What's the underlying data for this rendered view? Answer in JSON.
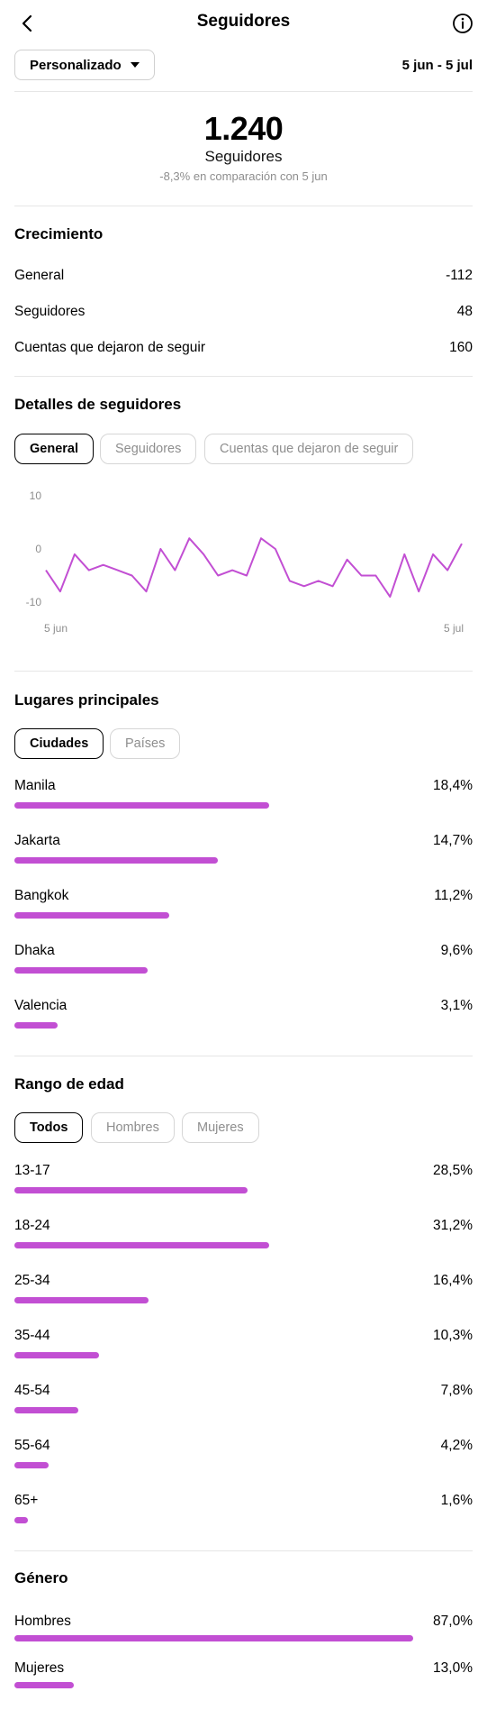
{
  "header": {
    "title": "Seguidores",
    "back_icon": "arrow-left-icon",
    "info_icon": "info-icon"
  },
  "filter": {
    "period_label": "Personalizado",
    "date_range": "5 jun - 5 jul"
  },
  "summary": {
    "total": "1.240",
    "label": "Seguidores",
    "comparison": "-8,3% en comparación con 5 jun"
  },
  "growth": {
    "title": "Crecimiento",
    "rows": [
      {
        "label": "General",
        "value": "-112"
      },
      {
        "label": "Seguidores",
        "value": "48"
      },
      {
        "label": "Cuentas que dejaron de seguir",
        "value": "160"
      }
    ]
  },
  "details": {
    "title": "Detalles de seguidores",
    "tabs": [
      {
        "label": "General",
        "active": true
      },
      {
        "label": "Seguidores",
        "active": false
      },
      {
        "label": "Cuentas que dejaron de seguir",
        "active": false
      }
    ]
  },
  "chart_data": {
    "type": "line",
    "x_tick_labels": [
      "5 jun",
      "5 jul"
    ],
    "y_ticks": [
      10,
      0,
      -10
    ],
    "ylim": [
      -10,
      10
    ],
    "color": "#c24fd3",
    "values": [
      -4,
      -8,
      -1,
      -4,
      -3,
      -4,
      -5,
      -8,
      0,
      -4,
      2,
      -1,
      -5,
      -4,
      -5,
      2,
      0,
      -6,
      -7,
      -6,
      -7,
      -2,
      -5,
      -5,
      -9,
      -1,
      -8,
      -1,
      -4,
      1
    ]
  },
  "places": {
    "title": "Lugares principales",
    "tabs": [
      {
        "label": "Ciudades",
        "active": true
      },
      {
        "label": "Países",
        "active": false
      }
    ],
    "rows": [
      {
        "label": "Manila",
        "pct": "18,4%",
        "fill": 0.556
      },
      {
        "label": "Jakarta",
        "pct": "14,7%",
        "fill": 0.444
      },
      {
        "label": "Bangkok",
        "pct": "11,2%",
        "fill": 0.338
      },
      {
        "label": "Dhaka",
        "pct": "9,6%",
        "fill": 0.29
      },
      {
        "label": "Valencia",
        "pct": "3,1%",
        "fill": 0.094
      }
    ]
  },
  "age": {
    "title": "Rango de edad",
    "tabs": [
      {
        "label": "Todos",
        "active": true
      },
      {
        "label": "Hombres",
        "active": false
      },
      {
        "label": "Mujeres",
        "active": false
      }
    ],
    "rows": [
      {
        "label": "13-17",
        "pct": "28,5%",
        "fill": 0.508
      },
      {
        "label": "18-24",
        "pct": "31,2%",
        "fill": 0.556
      },
      {
        "label": "25-34",
        "pct": "16,4%",
        "fill": 0.292
      },
      {
        "label": "35-44",
        "pct": "10,3%",
        "fill": 0.184
      },
      {
        "label": "45-54",
        "pct": "7,8%",
        "fill": 0.139
      },
      {
        "label": "55-64",
        "pct": "4,2%",
        "fill": 0.075
      },
      {
        "label": "65+",
        "pct": "1,6%",
        "fill": 0.029
      }
    ]
  },
  "gender": {
    "title": "Género",
    "rows": [
      {
        "label": "Hombres",
        "pct": "87,0%",
        "fill": 0.87
      },
      {
        "label": "Mujeres",
        "pct": "13,0%",
        "fill": 0.13
      }
    ]
  }
}
